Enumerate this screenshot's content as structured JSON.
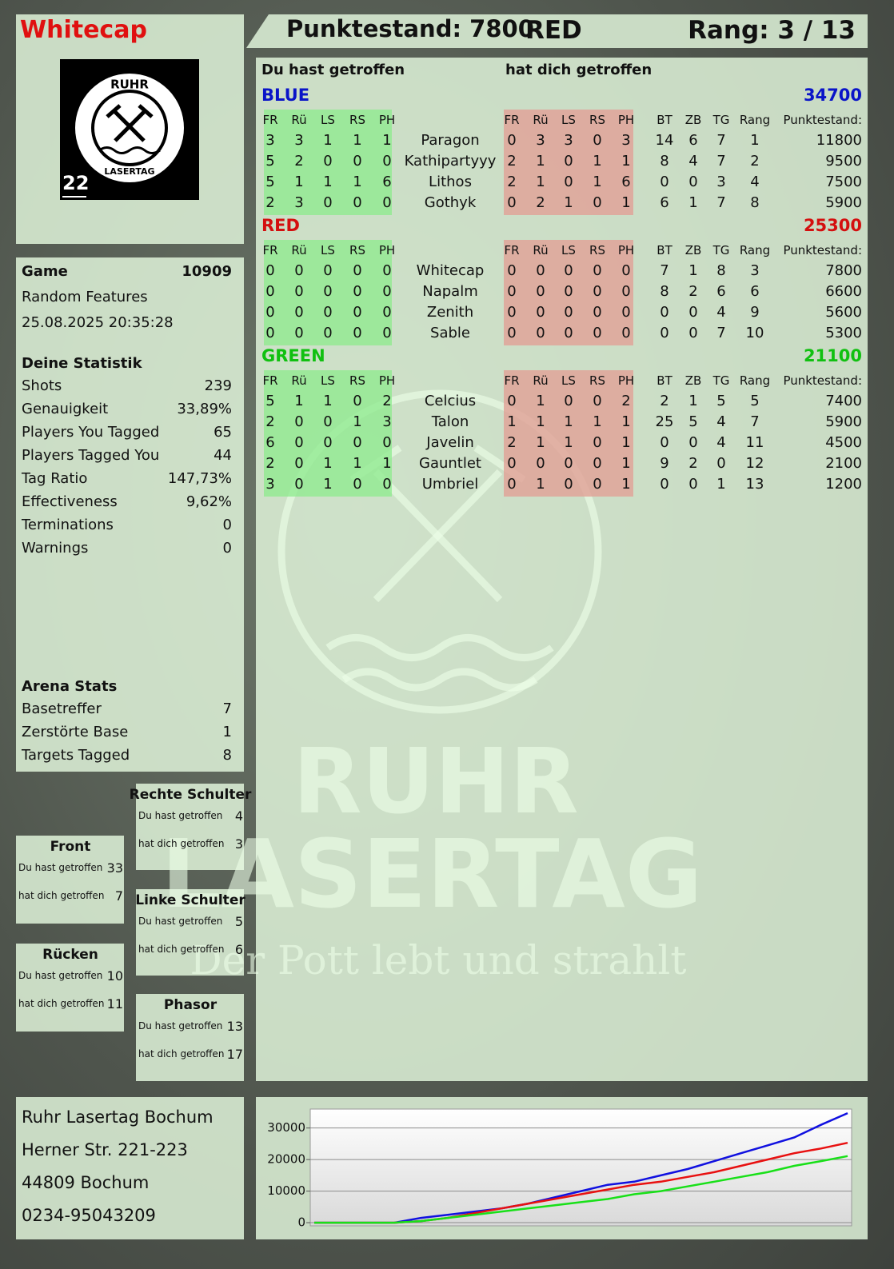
{
  "header": {
    "player": "Whitecap",
    "score": "Punktestand: 7800",
    "team": "RED",
    "rank": "Rang: 3 / 13"
  },
  "logo": {
    "top": "RUHR",
    "bottom": "LASERTAG",
    "number": "22"
  },
  "watermark": {
    "line1": "RUHR",
    "line2": "LASERTAG",
    "slogan": "Der Pott lebt und strahlt"
  },
  "game": {
    "label": "Game",
    "id": 10909,
    "mode": "Random Features",
    "datetime": "25.08.2025 20:35:28"
  },
  "statistics": {
    "title": "Deine Statistik",
    "rows": [
      [
        "Shots",
        239
      ],
      [
        "Genauigkeit",
        "33,89%"
      ],
      [
        "Players You Tagged",
        65
      ],
      [
        "Players Tagged You",
        44
      ],
      [
        "Tag Ratio",
        "147,73%"
      ],
      [
        "Effectiveness",
        "9,62%"
      ],
      [
        "Terminations",
        0
      ],
      [
        "Warnings",
        0
      ]
    ]
  },
  "arena": {
    "title": "Arena Stats",
    "rows": [
      [
        "Basetreffer",
        7
      ],
      [
        "Zerstörte Base",
        1
      ],
      [
        "Targets Tagged",
        8
      ]
    ]
  },
  "zones": {
    "hit_label": "Du hast getroffen",
    "got_label": "hat dich getroffen",
    "items": [
      {
        "title": "Rechte Schulter",
        "hit": 4,
        "got": 3
      },
      {
        "title": "Front",
        "hit": 33,
        "got": 7
      },
      {
        "title": "Linke Schulter",
        "hit": 5,
        "got": 6
      },
      {
        "title": "Rücken",
        "hit": 10,
        "got": 11
      },
      {
        "title": "Phasor",
        "hit": 13,
        "got": 17
      }
    ]
  },
  "address": [
    "Ruhr Lasertag Bochum",
    "Herner Str. 221-223",
    "44809 Bochum",
    "0234-95043209"
  ],
  "table": {
    "hit_heading": "Du hast getroffen",
    "got_heading": "hat dich getroffen",
    "hit_columns": [
      "FR",
      "Rü",
      "LS",
      "RS",
      "PH"
    ],
    "stat_columns": [
      "BT",
      "ZB",
      "TG",
      "Rang",
      "Punktestand:"
    ],
    "teams": [
      {
        "name": "BLUE",
        "color": "#0a14c8",
        "score": 34700,
        "players": [
          {
            "name": "Paragon",
            "hit": [
              3,
              3,
              1,
              1,
              1
            ],
            "got": [
              0,
              3,
              3,
              0,
              3
            ],
            "stats": [
              14,
              6,
              7,
              1,
              11800
            ]
          },
          {
            "name": "Kathipartyyy",
            "hit": [
              5,
              2,
              0,
              0,
              0
            ],
            "got": [
              2,
              1,
              0,
              1,
              1
            ],
            "stats": [
              8,
              4,
              7,
              2,
              9500
            ]
          },
          {
            "name": "Lithos",
            "hit": [
              5,
              1,
              1,
              1,
              6
            ],
            "got": [
              2,
              1,
              0,
              1,
              6
            ],
            "stats": [
              0,
              0,
              3,
              4,
              7500
            ]
          },
          {
            "name": "Gothyk",
            "hit": [
              2,
              3,
              0,
              0,
              0
            ],
            "got": [
              0,
              2,
              1,
              0,
              1
            ],
            "stats": [
              6,
              1,
              7,
              8,
              5900
            ]
          }
        ]
      },
      {
        "name": "RED",
        "color": "#d40f0f",
        "score": 25300,
        "players": [
          {
            "name": "Whitecap",
            "hit": [
              0,
              0,
              0,
              0,
              0
            ],
            "got": [
              0,
              0,
              0,
              0,
              0
            ],
            "stats": [
              7,
              1,
              8,
              3,
              7800
            ]
          },
          {
            "name": "Napalm",
            "hit": [
              0,
              0,
              0,
              0,
              0
            ],
            "got": [
              0,
              0,
              0,
              0,
              0
            ],
            "stats": [
              8,
              2,
              6,
              6,
              6600
            ]
          },
          {
            "name": "Zenith",
            "hit": [
              0,
              0,
              0,
              0,
              0
            ],
            "got": [
              0,
              0,
              0,
              0,
              0
            ],
            "stats": [
              0,
              0,
              4,
              9,
              5600
            ]
          },
          {
            "name": "Sable",
            "hit": [
              0,
              0,
              0,
              0,
              0
            ],
            "got": [
              0,
              0,
              0,
              0,
              0
            ],
            "stats": [
              0,
              0,
              7,
              10,
              5300
            ]
          }
        ]
      },
      {
        "name": "GREEN",
        "color": "#10c010",
        "score": 21100,
        "players": [
          {
            "name": "Celcius",
            "hit": [
              5,
              1,
              1,
              0,
              2
            ],
            "got": [
              0,
              1,
              0,
              0,
              2
            ],
            "stats": [
              2,
              1,
              5,
              5,
              7400
            ]
          },
          {
            "name": "Talon",
            "hit": [
              2,
              0,
              0,
              1,
              3
            ],
            "got": [
              1,
              1,
              1,
              1,
              1
            ],
            "stats": [
              25,
              5,
              4,
              7,
              5900
            ]
          },
          {
            "name": "Javelin",
            "hit": [
              6,
              0,
              0,
              0,
              0
            ],
            "got": [
              2,
              1,
              1,
              0,
              1
            ],
            "stats": [
              0,
              0,
              4,
              11,
              4500
            ]
          },
          {
            "name": "Gauntlet",
            "hit": [
              2,
              0,
              1,
              1,
              1
            ],
            "got": [
              0,
              0,
              0,
              0,
              1
            ],
            "stats": [
              9,
              2,
              0,
              12,
              2100
            ]
          },
          {
            "name": "Umbriel",
            "hit": [
              3,
              0,
              1,
              0,
              0
            ],
            "got": [
              0,
              1,
              0,
              0,
              1
            ],
            "stats": [
              0,
              0,
              1,
              13,
              1200
            ]
          }
        ]
      }
    ]
  },
  "chart_data": {
    "type": "line",
    "ylim": [
      -1000,
      36000
    ],
    "yticks": [
      0,
      10000,
      20000,
      30000
    ],
    "grid": true,
    "series": [
      {
        "name": "BLUE",
        "color": "#1010e0",
        "values": [
          0,
          0,
          0,
          0,
          1500,
          2500,
          3500,
          4500,
          6000,
          8000,
          10000,
          12000,
          13000,
          15000,
          17000,
          19500,
          22000,
          24500,
          27000,
          31000,
          34700
        ]
      },
      {
        "name": "RED",
        "color": "#e81010",
        "values": [
          0,
          0,
          0,
          0,
          500,
          1500,
          3000,
          4500,
          6000,
          7500,
          9000,
          10500,
          12000,
          13000,
          14500,
          16000,
          18000,
          20000,
          22000,
          23500,
          25300
        ]
      },
      {
        "name": "GREEN",
        "color": "#18e018",
        "values": [
          0,
          0,
          0,
          0,
          500,
          1500,
          2500,
          3500,
          4500,
          5500,
          6500,
          7500,
          9000,
          10000,
          11500,
          13000,
          14500,
          16000,
          18000,
          19500,
          21100
        ]
      }
    ]
  }
}
